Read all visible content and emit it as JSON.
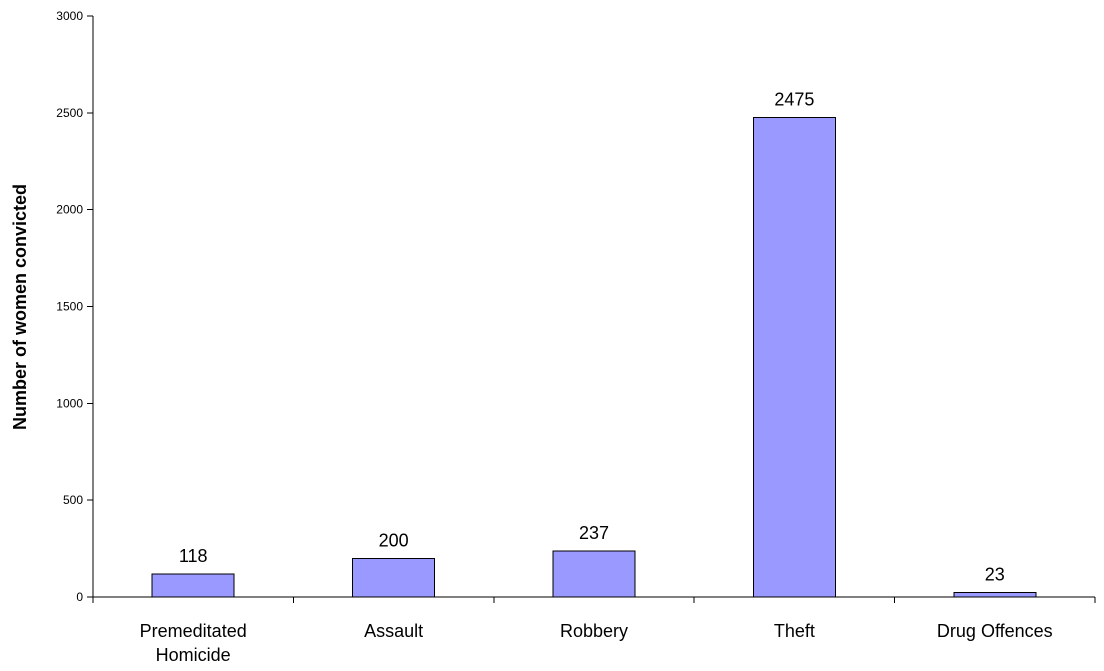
{
  "chart_data": {
    "type": "bar",
    "title": "",
    "xlabel": "",
    "ylabel": "Number of women convicted",
    "categories": [
      [
        "Premeditated",
        "Homicide"
      ],
      [
        "Assault"
      ],
      [
        "Robbery"
      ],
      [
        "Theft"
      ],
      [
        "Drug Offences"
      ]
    ],
    "values": [
      118,
      200,
      237,
      2475,
      23
    ],
    "value_labels": [
      "118",
      "200",
      "237",
      "2475",
      "23"
    ],
    "ylim": [
      0,
      3000
    ],
    "yticks": [
      0,
      500,
      1000,
      1500,
      2000,
      2500,
      3000
    ],
    "ytick_labels": [
      "0",
      "500",
      "1000",
      "1500",
      "2000",
      "2500",
      "3000"
    ],
    "grid": false,
    "legend": "none",
    "bar_color": "#9999ff",
    "border_color": "#000000"
  }
}
